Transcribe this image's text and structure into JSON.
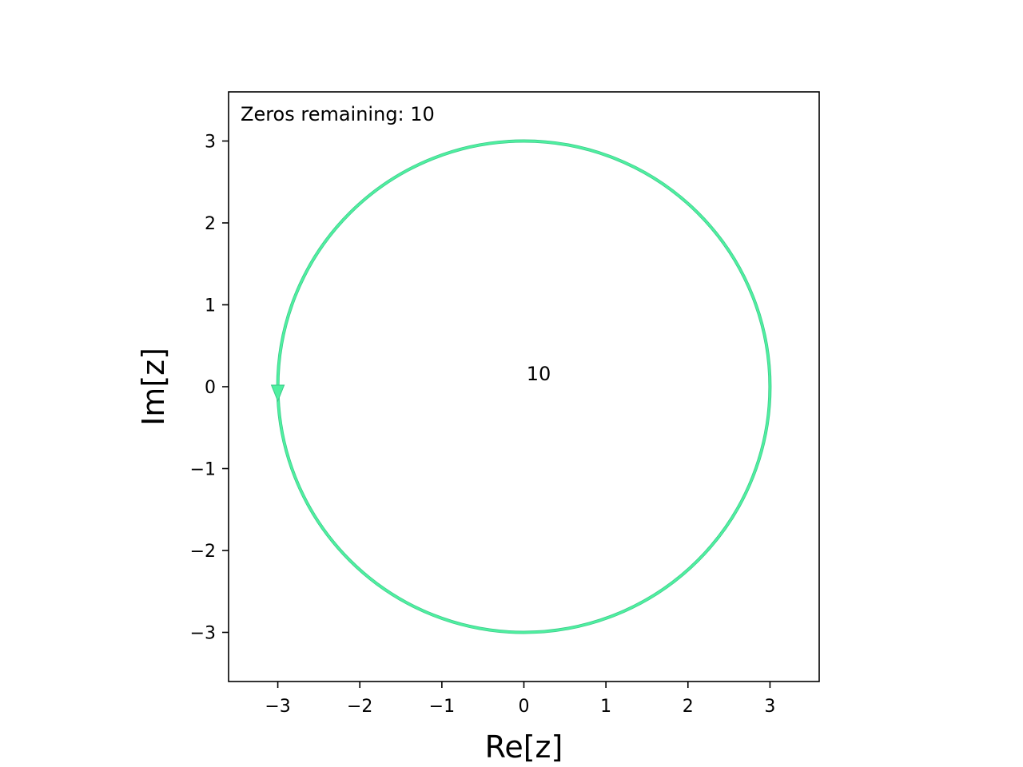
{
  "chart_data": {
    "type": "line",
    "title": "",
    "xlabel": "Re[z]",
    "ylabel": "Im[z]",
    "xlim": [
      -3.6,
      3.6
    ],
    "ylim": [
      -3.6,
      3.6
    ],
    "x_ticks": [
      -3,
      -2,
      -1,
      0,
      1,
      2,
      3
    ],
    "y_ticks": [
      -3,
      -2,
      -1,
      0,
      1,
      2,
      3
    ],
    "x_tick_labels": [
      "−3",
      "−2",
      "−1",
      "0",
      "1",
      "2",
      "3"
    ],
    "y_tick_labels": [
      "−3",
      "−2",
      "−1",
      "0",
      "1",
      "2",
      "3"
    ],
    "grid": false,
    "series": [
      {
        "shape": "circle",
        "center": [
          0,
          0
        ],
        "radius": 3,
        "color": "#4ff0a0",
        "edge_color": "#3cc98a",
        "direction": "counterclockwise",
        "arrow_at": [
          -3,
          0
        ]
      }
    ],
    "annotations": [
      {
        "text": "Zeros remaining: 10",
        "placement": "top-left"
      },
      {
        "text": "10",
        "x": 0.18,
        "y": 0.08
      }
    ]
  }
}
